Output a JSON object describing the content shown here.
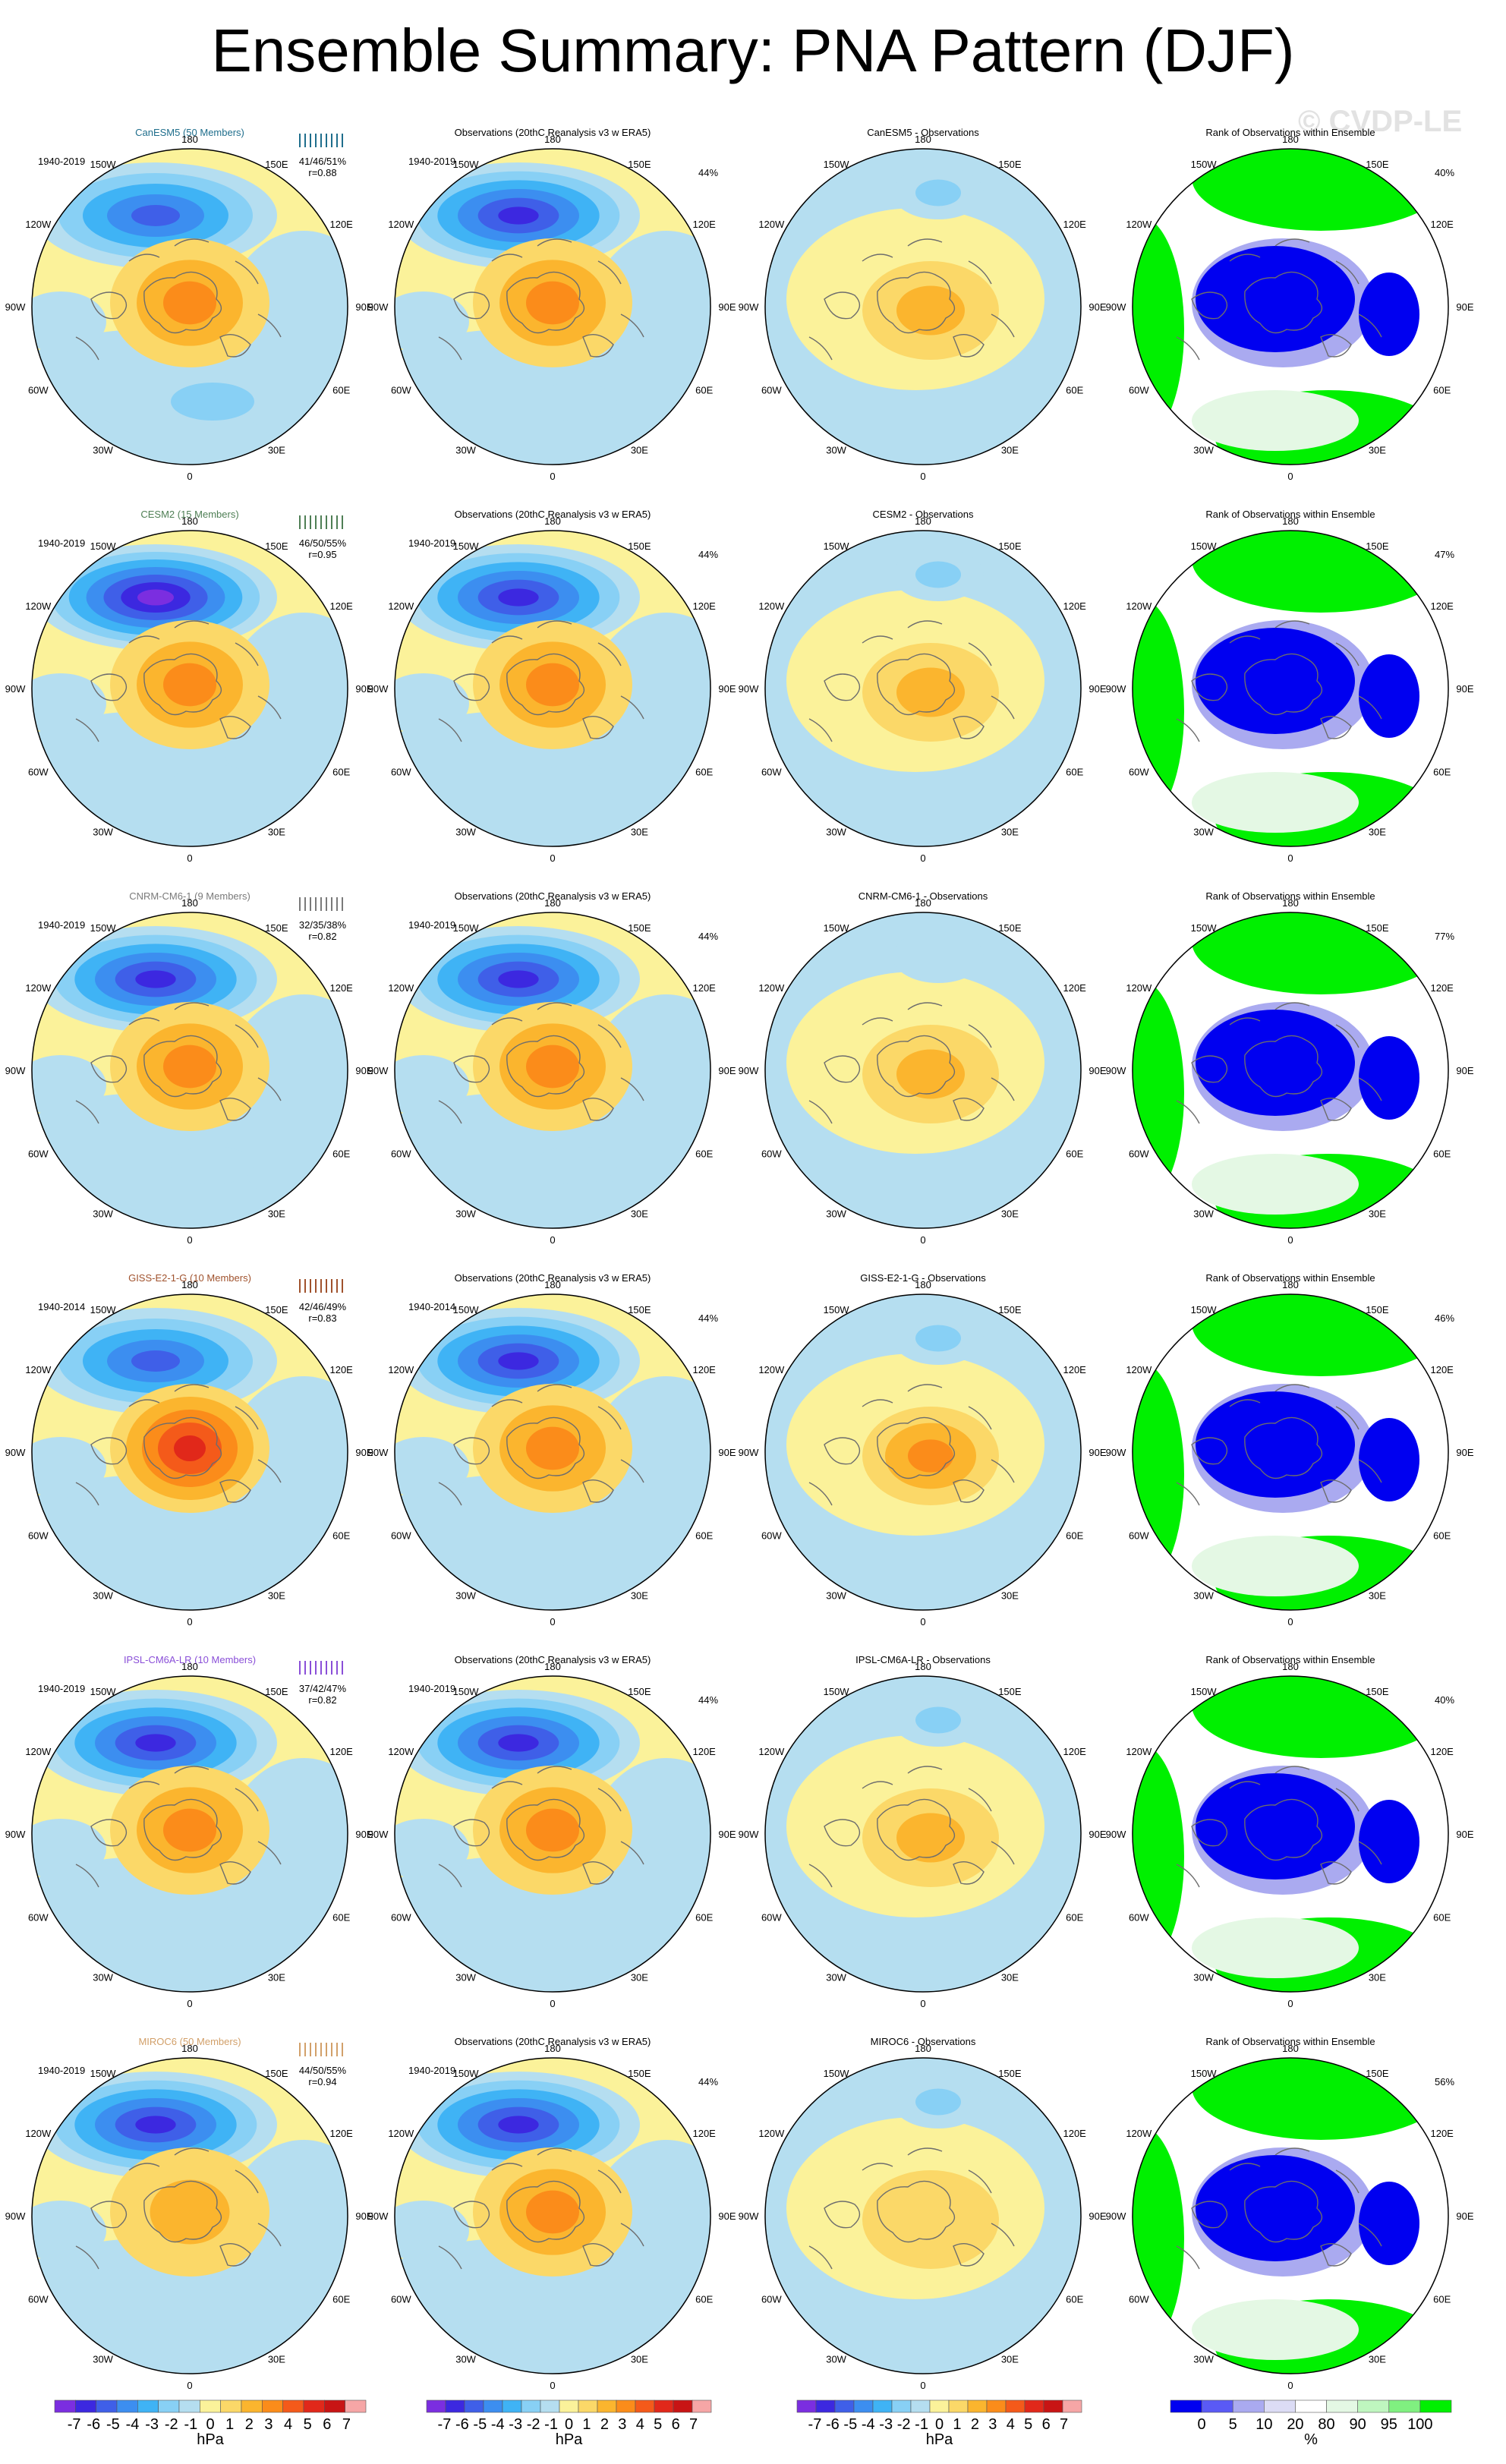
{
  "title": "Ensemble Summary: PNA Pattern (DJF)",
  "watermark": "© CVDP-LE",
  "colors": {
    "anomaly_scale": [
      "#7b2ee0",
      "#3c28e0",
      "#3f5fe8",
      "#3c8ef0",
      "#3fb3f5",
      "#88d0f5",
      "#b5def0",
      "#fbf29a",
      "#fbd868",
      "#fbb52e",
      "#fb8c1a",
      "#f45a1a",
      "#e1281a",
      "#c81414",
      "#f6a6a6"
    ],
    "rank_scale": [
      "#0000f0",
      "#5a5af5",
      "#aaaaf0",
      "#dcdcf5",
      "#ffffff",
      "#e4f8e4",
      "#bff6bf",
      "#80f080",
      "#00f000"
    ],
    "model_label_colors": [
      "#1f6e8c",
      "#4f7f55",
      "#7a7a7a",
      "#a0522d",
      "#8a4fd8",
      "#d2a06a"
    ]
  },
  "models": [
    {
      "name": "CanESM5 (50 Members)",
      "period": "1940-2019",
      "stat": "41/46/51%",
      "r": "r=0.88",
      "diff_title": "CanESM5 - Observations",
      "obs_period": "1940-2019",
      "obs_pct": "44%",
      "rank_pct": "40%"
    },
    {
      "name": "CESM2 (15 Members)",
      "period": "1940-2019",
      "stat": "46/50/55%",
      "r": "r=0.95",
      "diff_title": "CESM2 - Observations",
      "obs_period": "1940-2019",
      "obs_pct": "44%",
      "rank_pct": "47%"
    },
    {
      "name": "CNRM-CM6-1 (9 Members)",
      "period": "1940-2019",
      "stat": "32/35/38%",
      "r": "r=0.82",
      "diff_title": "CNRM-CM6-1 - Observations",
      "obs_period": "1940-2019",
      "obs_pct": "44%",
      "rank_pct": "77%"
    },
    {
      "name": "GISS-E2-1-G (10 Members)",
      "period": "1940-2014",
      "stat": "42/46/49%",
      "r": "r=0.83",
      "diff_title": "GISS-E2-1-G - Observations",
      "obs_period": "1940-2014",
      "obs_pct": "44%",
      "rank_pct": "46%"
    },
    {
      "name": "IPSL-CM6A-LR (10 Members)",
      "period": "1940-2019",
      "stat": "37/42/47%",
      "r": "r=0.82",
      "diff_title": "IPSL-CM6A-LR - Observations",
      "obs_period": "1940-2019",
      "obs_pct": "44%",
      "rank_pct": "40%"
    },
    {
      "name": "MIROC6 (50 Members)",
      "period": "1940-2019",
      "stat": "44/50/55%",
      "r": "r=0.94",
      "diff_title": "MIROC6 - Observations",
      "obs_period": "1940-2019",
      "obs_pct": "44%",
      "rank_pct": "56%"
    }
  ],
  "obs_title": "Observations (20thC Reanalysis v3 w ERA5)",
  "rank_title": "Rank of Observations within Ensemble",
  "lon_labels": {
    "top": "180",
    "upper_left": "150W",
    "upper_right": "150E",
    "mid_upper_left": "120W",
    "mid_upper_right": "120E",
    "left": "90W",
    "right": "90E",
    "mid_lower_left": "60W",
    "mid_lower_right": "60E",
    "lower_left": "30W",
    "lower_right": "30E",
    "bottom": "0"
  },
  "chart_data": {
    "type": "polar-stereographic map panel grid",
    "title": "Ensemble Summary: PNA Pattern (DJF)",
    "colorbars": [
      {
        "ticks": [
          "-7",
          "-6",
          "-5",
          "-4",
          "-3",
          "-2",
          "-1",
          "0",
          "1",
          "2",
          "3",
          "4",
          "5",
          "6",
          "7"
        ],
        "unit": "hPa"
      },
      {
        "ticks": [
          "-7",
          "-6",
          "-5",
          "-4",
          "-3",
          "-2",
          "-1",
          "0",
          "1",
          "2",
          "3",
          "4",
          "5",
          "6",
          "7"
        ],
        "unit": "hPa"
      },
      {
        "ticks": [
          "-7",
          "-6",
          "-5",
          "-4",
          "-3",
          "-2",
          "-1",
          "0",
          "1",
          "2",
          "3",
          "4",
          "5",
          "6",
          "7"
        ],
        "unit": "hPa"
      },
      {
        "ticks": [
          "0",
          "5",
          "10",
          "20",
          "80",
          "90",
          "95",
          "100"
        ],
        "unit": "%"
      }
    ],
    "model_pattern": [
      {
        "low_hPa": -5,
        "high_hPa": 3,
        "south_low": -2
      },
      {
        "low_hPa": -7,
        "high_hPa": 3,
        "south_low": -1
      },
      {
        "low_hPa": -6,
        "high_hPa": 3,
        "south_low": -1
      },
      {
        "low_hPa": -5,
        "high_hPa": 5,
        "south_low": -1
      },
      {
        "low_hPa": -6,
        "high_hPa": 3,
        "south_low": -1
      },
      {
        "low_hPa": -6,
        "high_hPa": 2,
        "south_low": -1
      }
    ],
    "diff_pattern": [
      {
        "low_hPa": -2,
        "high_hPa": 2
      },
      {
        "low_hPa": -2,
        "high_hPa": 2
      },
      {
        "low_hPa": -1,
        "high_hPa": 2
      },
      {
        "low_hPa": -2,
        "high_hPa": 3
      },
      {
        "low_hPa": -2,
        "high_hPa": 2
      },
      {
        "low_hPa": -2,
        "high_hPa": 1
      }
    ]
  }
}
